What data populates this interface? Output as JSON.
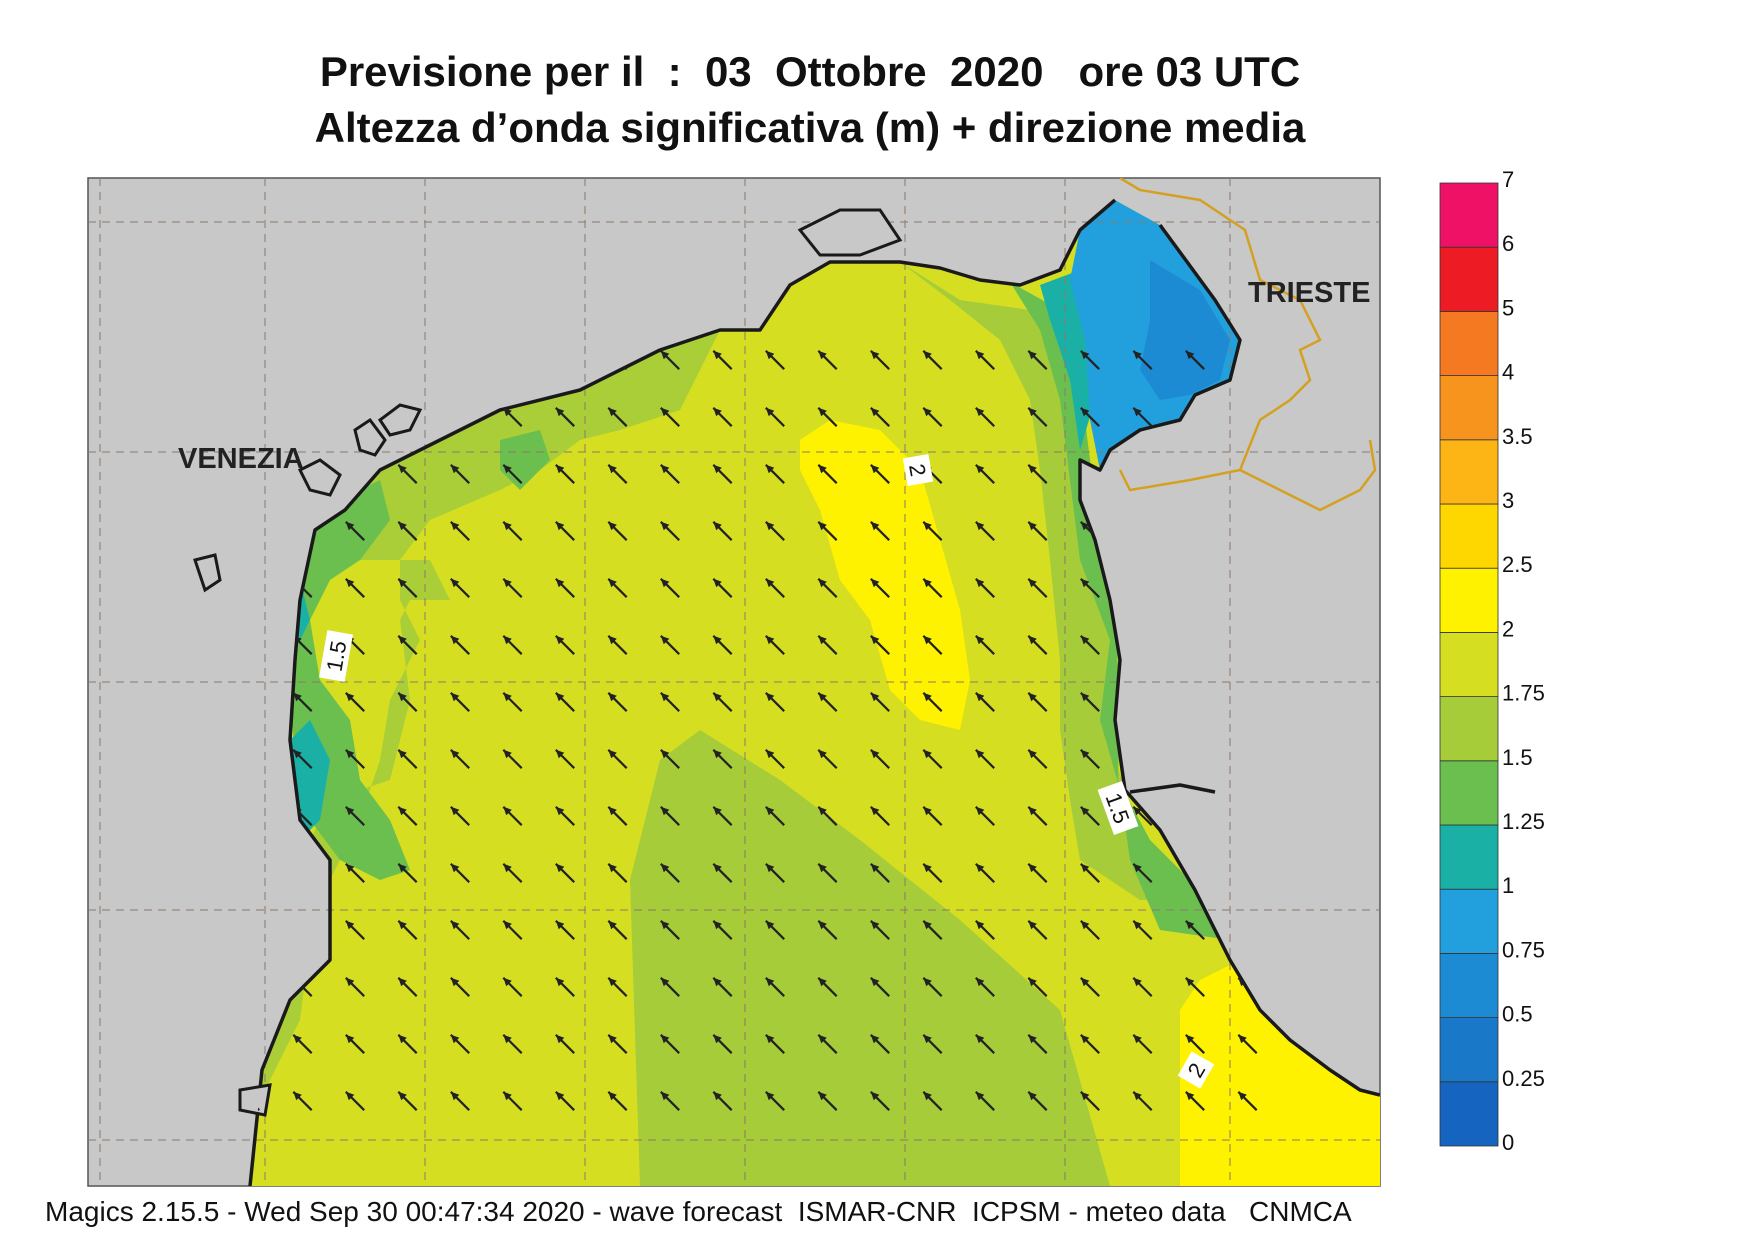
{
  "title": {
    "line1": "Previsione per il  :  03  Ottobre  2020   ore 03 UTC",
    "line2": "Altezza d’onda significativa (m) + direzione media"
  },
  "footer": "Magics 2.15.5 - Wed Sep 30 00:47:34 2020 - wave forecast  ISMAR-CNR  ICPSM - meteo data   CNMCA",
  "map": {
    "cities": [
      {
        "name": "VENEZIA"
      },
      {
        "name": "TRIESTE"
      }
    ],
    "contour_labels": [
      "2",
      "1.5",
      "1.5",
      "2"
    ],
    "wave_direction": "from south-east (arrows pointing north-west)"
  },
  "legend": {
    "levels": [
      "0",
      "0.25",
      "0.5",
      "0.75",
      "1",
      "1.25",
      "1.5",
      "1.75",
      "2",
      "2.5",
      "3",
      "3.5",
      "4",
      "5",
      "6",
      "7"
    ],
    "colors": [
      "#1565c0",
      "#1a78c8",
      "#1d8bd4",
      "#22a0de",
      "#1ab0a6",
      "#6bbf4e",
      "#a6cc3a",
      "#d6de22",
      "#fff200",
      "#ffd700",
      "#fdb515",
      "#f7941d",
      "#f47920",
      "#ed1c24",
      "#ee1166"
    ]
  },
  "colors": {
    "land": "#c8c8c8",
    "border": "#d4a020",
    "coast": "#1a1a1a",
    "arrow": "#222222"
  }
}
